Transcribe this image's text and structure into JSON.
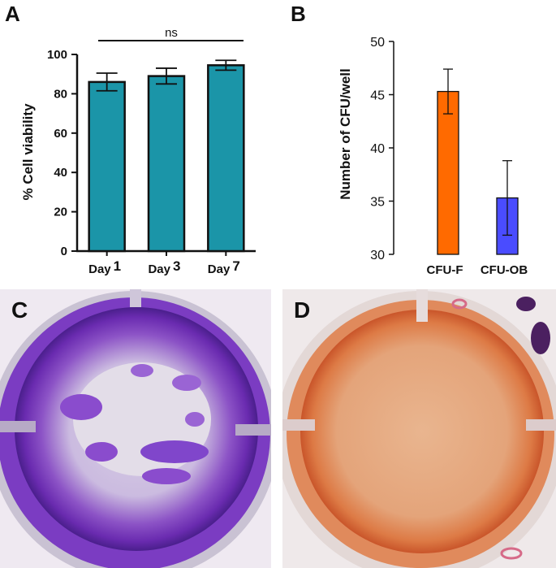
{
  "panels": {
    "a": "A",
    "b": "B",
    "c": "C",
    "d": "D"
  },
  "chart_data": [
    {
      "type": "bar",
      "panel": "A",
      "categories": [
        "Day 1",
        "Day 3",
        "Day 7"
      ],
      "category_parts": [
        {
          "word": "Day",
          "num": "1"
        },
        {
          "word": "Day",
          "num": "3"
        },
        {
          "word": "Day",
          "num": "7"
        }
      ],
      "values": [
        86,
        89,
        94.5
      ],
      "errors": [
        4.5,
        4,
        2.5
      ],
      "ylabel": "% Cell viability",
      "ylim": [
        0,
        100
      ],
      "yticks": [
        0,
        20,
        40,
        60,
        80,
        100
      ],
      "annotation": "ns",
      "bar_color": "#1b95a8",
      "grid": false
    },
    {
      "type": "bar",
      "panel": "B",
      "categories": [
        "CFU-F",
        "CFU-OB"
      ],
      "values": [
        45.3,
        35.3
      ],
      "errors": [
        2.1,
        3.5
      ],
      "ylabel": "Number of CFU/well",
      "ylim": [
        30,
        50
      ],
      "yticks": [
        30,
        35,
        40,
        45,
        50
      ],
      "bar_colors": [
        "#ff6a00",
        "#4a4cff"
      ],
      "grid": false
    }
  ]
}
